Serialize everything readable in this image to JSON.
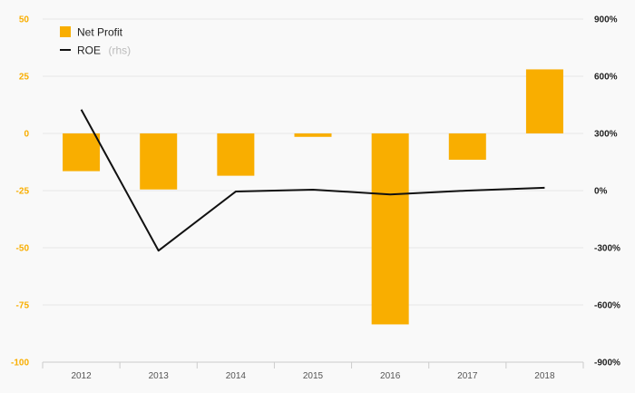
{
  "colors": {
    "bar": "#f9ae00",
    "line": "#111111",
    "left_axis": "#f9ae00",
    "grid": "#e6e6e6"
  },
  "legend": {
    "bar_label": "Net Profit",
    "line_label": "ROE",
    "line_suffix": "(rhs)"
  },
  "chart_data": {
    "type": "bar",
    "categories": [
      "2012",
      "2013",
      "2014",
      "2015",
      "2016",
      "2017",
      "2018"
    ],
    "series": [
      {
        "name": "Net Profit",
        "type": "bar",
        "axis": "left",
        "values": [
          -16.5,
          -24.5,
          -18.5,
          -1.5,
          -83.5,
          -11.5,
          28.0
        ]
      },
      {
        "name": "ROE",
        "type": "line",
        "axis": "right",
        "values": [
          425,
          -315,
          -5,
          5,
          -20,
          0,
          15
        ]
      }
    ],
    "y_left": {
      "ylim": [
        -100,
        50
      ],
      "ticks": [
        50,
        25,
        0,
        -25,
        -50,
        -75,
        -100
      ],
      "tick_labels": [
        "50",
        "25",
        "0",
        "-25",
        "-50",
        "-75",
        "-100"
      ]
    },
    "y_right": {
      "ylim": [
        -900,
        900
      ],
      "ticks": [
        900,
        600,
        300,
        0,
        -300,
        -600,
        -900
      ],
      "tick_labels": [
        "900%",
        "600%",
        "300%",
        "0%",
        "-300%",
        "-600%",
        "-900%"
      ]
    },
    "grid": true,
    "legend_position": "top-left"
  }
}
